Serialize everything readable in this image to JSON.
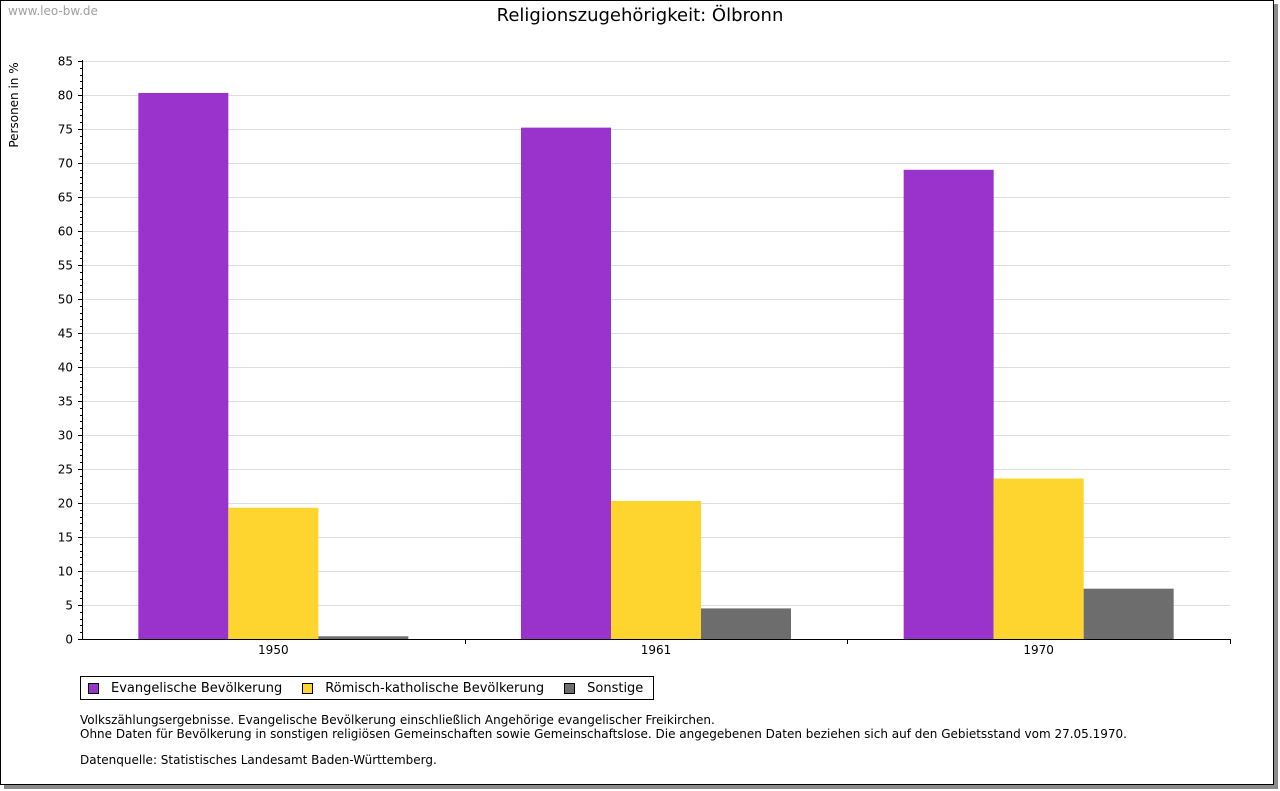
{
  "watermark": "www.leo-bw.de",
  "chart_data": {
    "type": "bar",
    "title": "Religionszugehörigkeit: Ölbronn",
    "xlabel": "",
    "ylabel": "Personen in %",
    "ylim": [
      0,
      85
    ],
    "yticks": [
      "0",
      "5",
      "10",
      "15",
      "20",
      "25",
      "30",
      "35",
      "40",
      "45",
      "50",
      "55",
      "60",
      "65",
      "70",
      "75",
      "80",
      "85"
    ],
    "categories": [
      "1950",
      "1961",
      "1970"
    ],
    "series": [
      {
        "name": "Evangelische Bevölkerung",
        "color": "#9933cc",
        "values": [
          80.3,
          75.2,
          69.0
        ]
      },
      {
        "name": "Römisch-katholische Bevölkerung",
        "color": "#fdd52e",
        "values": [
          19.3,
          20.3,
          23.6
        ]
      },
      {
        "name": "Sonstige",
        "color": "#6d6d6d",
        "values": [
          0.4,
          4.5,
          7.4
        ]
      }
    ],
    "grid": true,
    "legend": "bottom-left"
  },
  "notes": {
    "line1": "Volkszählungsergebnisse. Evangelische Bevölkerung einschließlich Angehörige evangelischer Freikirchen.",
    "line2": "Ohne Daten für Bevölkerung in sonstigen religiösen Gemeinschaften sowie Gemeinschaftslose. Die angegebenen Daten beziehen sich auf den Gebietsstand vom 27.05.1970.",
    "source": "Datenquelle: Statistisches Landesamt Baden-Württemberg."
  }
}
